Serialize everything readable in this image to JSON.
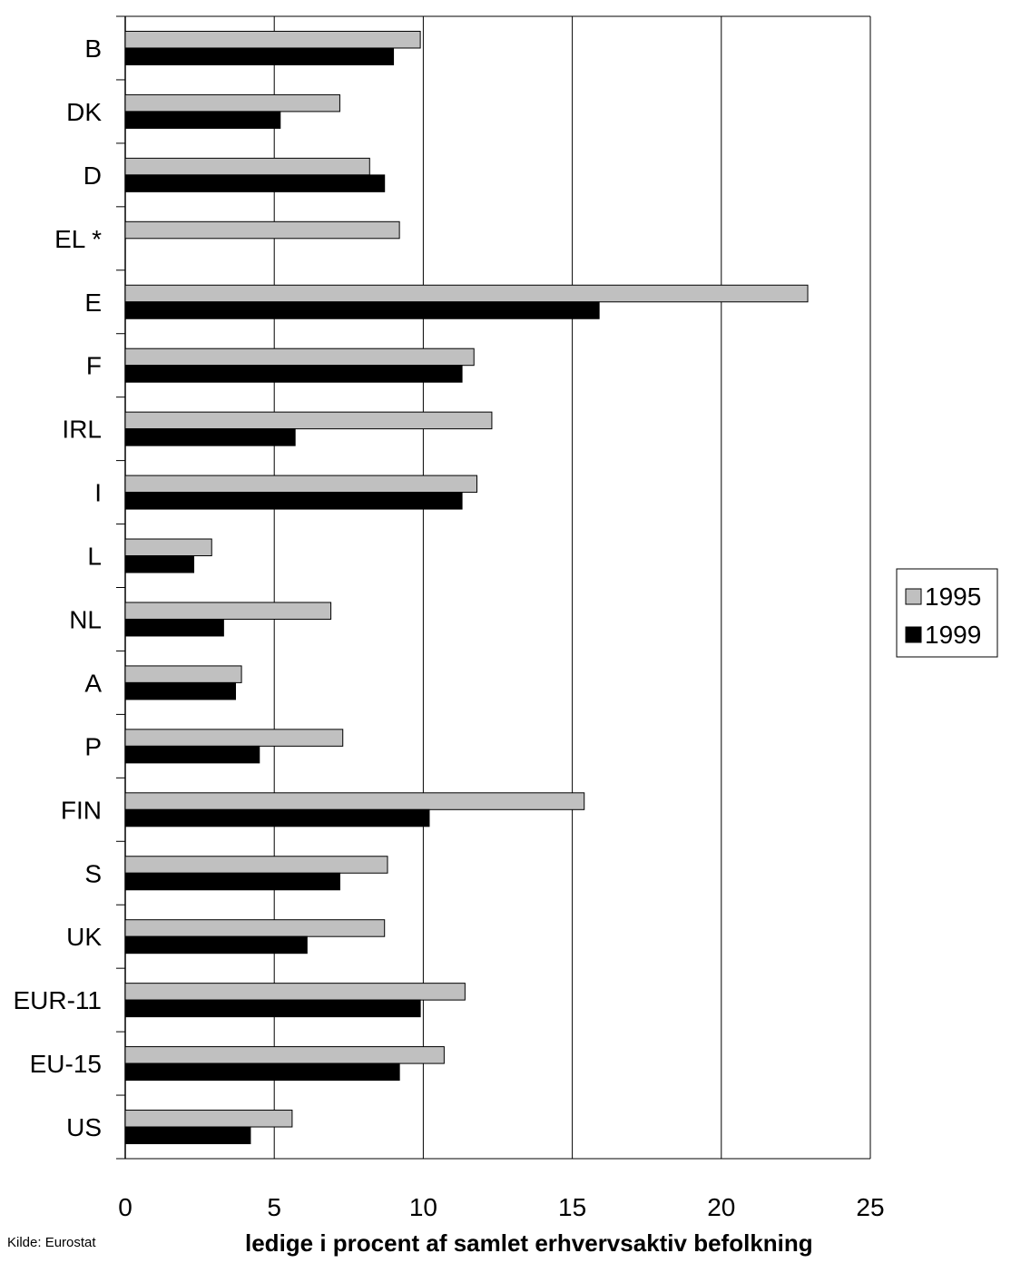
{
  "chart_data": {
    "type": "bar",
    "orientation": "horizontal",
    "categories": [
      "B",
      "DK",
      "D",
      "EL *",
      "E",
      "F",
      "IRL",
      "I",
      "L",
      "NL",
      "A",
      "P",
      "FIN",
      "S",
      "UK",
      "EUR-11",
      "EU-15",
      "US"
    ],
    "series": [
      {
        "name": "1995",
        "color": "#c0c0c0",
        "values": [
          9.9,
          7.2,
          8.2,
          9.2,
          22.9,
          11.7,
          12.3,
          11.8,
          2.9,
          6.9,
          3.9,
          7.3,
          15.4,
          8.8,
          8.7,
          11.4,
          10.7,
          5.6
        ]
      },
      {
        "name": "1999",
        "color": "#000000",
        "values": [
          9.0,
          5.2,
          8.7,
          null,
          15.9,
          11.3,
          5.7,
          11.3,
          2.3,
          3.3,
          3.7,
          4.5,
          10.2,
          7.2,
          6.1,
          9.9,
          9.2,
          4.2
        ]
      }
    ],
    "xticks": [
      "0",
      "5",
      "10",
      "15",
      "20",
      "25"
    ],
    "xlim": [
      0,
      25
    ],
    "xlabel": "ledige i procent af samlet erhvervsaktiv befolkning",
    "legend_position": "right",
    "grid": "vertical"
  },
  "source_note": "Kilde: Eurostat"
}
